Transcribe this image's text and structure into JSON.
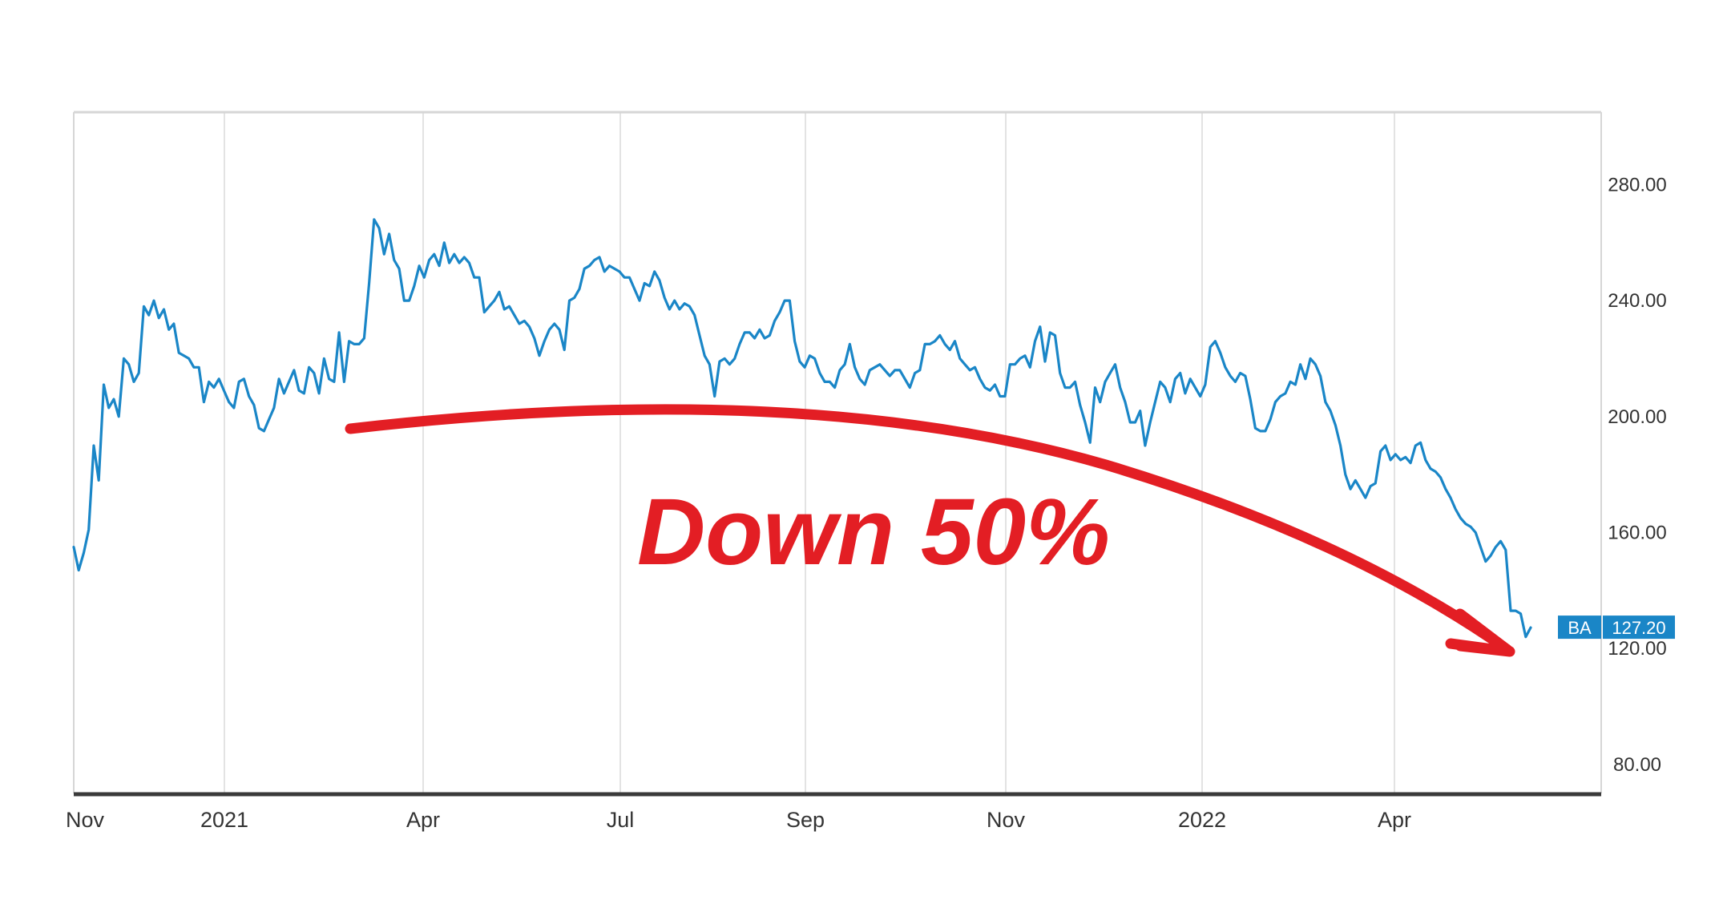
{
  "chart_data": {
    "type": "line",
    "title": "",
    "xlabel": "",
    "ylabel": "",
    "ylim": [
      70,
      305
    ],
    "grid": true,
    "x_ticks": [
      "Nov",
      "2021",
      "Apr",
      "Jul",
      "Sep",
      "Nov",
      "2022",
      "Apr"
    ],
    "y_ticks": [
      "80.00",
      "120.00",
      "160.00",
      "200.00",
      "240.00",
      "280.00"
    ],
    "series": [
      {
        "ticker": "BA",
        "color": "#1a86c7",
        "values": [
          155,
          147,
          153,
          161,
          190,
          178,
          211,
          203,
          206,
          200,
          220,
          218,
          212,
          215,
          238,
          235,
          240,
          234,
          237,
          230,
          232,
          222,
          221,
          220,
          217,
          217,
          205,
          212,
          210,
          213,
          209,
          205,
          203,
          212,
          213,
          207,
          204,
          196,
          195,
          199,
          203,
          213,
          208,
          212,
          216,
          209,
          208,
          217,
          215,
          208,
          220,
          213,
          212,
          229,
          212,
          226,
          225,
          225,
          227,
          246,
          268,
          265,
          256,
          263,
          254,
          251,
          240,
          240,
          245,
          252,
          248,
          254,
          256,
          252,
          260,
          253,
          256,
          253,
          255,
          253,
          248,
          248,
          236,
          238,
          240,
          243,
          237,
          238,
          235,
          232,
          233,
          231,
          227,
          221,
          226,
          230,
          232,
          230,
          223,
          240,
          241,
          244,
          251,
          252,
          254,
          255,
          250,
          252,
          251,
          250,
          248,
          248,
          244,
          240,
          246,
          245,
          250,
          247,
          241,
          237,
          240,
          237,
          239,
          238,
          235,
          228,
          221,
          218,
          207,
          219,
          220,
          218,
          220,
          225,
          229,
          229,
          227,
          230,
          227,
          228,
          233,
          236,
          240,
          240,
          226,
          219,
          217,
          221,
          220,
          215,
          212,
          212,
          210,
          216,
          218,
          225,
          217,
          213,
          211,
          216,
          217,
          218,
          216,
          214,
          216,
          216,
          213,
          210,
          215,
          216,
          225,
          225,
          226,
          228,
          225,
          223,
          226,
          220,
          218,
          216,
          217,
          213,
          210,
          209,
          211,
          207,
          207,
          218,
          218,
          220,
          221,
          217,
          226,
          231,
          219,
          229,
          228,
          215,
          210,
          210,
          212,
          204,
          198,
          191,
          210,
          205,
          212,
          215,
          218,
          210,
          205,
          198,
          198,
          202,
          190,
          198,
          205,
          212,
          210,
          205,
          213,
          215,
          208,
          213,
          210,
          207,
          211,
          224,
          226,
          222,
          217,
          214,
          212,
          215,
          214,
          206,
          196,
          195,
          195,
          199,
          205,
          207,
          208,
          212,
          211,
          218,
          213,
          220,
          218,
          214,
          205,
          202,
          197,
          190,
          180,
          175,
          178,
          175,
          172,
          176,
          177,
          188,
          190,
          185,
          187,
          185,
          186,
          184,
          190,
          191,
          185,
          182,
          181,
          179,
          175,
          172,
          168,
          165,
          163,
          162,
          160,
          155,
          150,
          152,
          155,
          157,
          154,
          133,
          133,
          132,
          124,
          127.2
        ],
        "last_label": "127.20"
      }
    ]
  },
  "annotation": {
    "text": "Down 50%",
    "color": "#e31e24"
  }
}
